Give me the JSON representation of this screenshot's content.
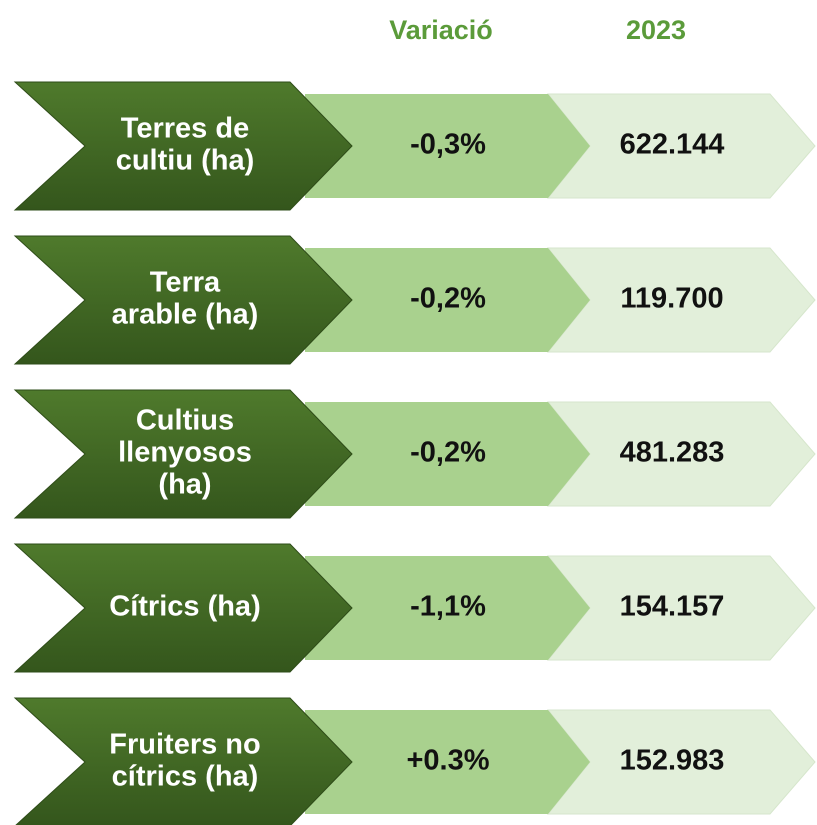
{
  "header": {
    "variation": "Variació",
    "year": "2023"
  },
  "rows": [
    {
      "label": [
        "Terres de",
        "cultiu (ha)"
      ],
      "variation": "-0,3%",
      "value": "622.144"
    },
    {
      "label": [
        "Terra",
        "arable (ha)"
      ],
      "variation": "-0,2%",
      "value": "119.700"
    },
    {
      "label": [
        "Cultius",
        "llenyosos",
        "(ha)"
      ],
      "variation": "-0,2%",
      "value": "481.283"
    },
    {
      "label": [
        "Cítrics (ha)"
      ],
      "variation": "-1,1%",
      "value": "154.157"
    },
    {
      "label": [
        "Fruiters no",
        "cítrics (ha)"
      ],
      "variation": "+0.3%",
      "value": "152.983"
    }
  ]
}
